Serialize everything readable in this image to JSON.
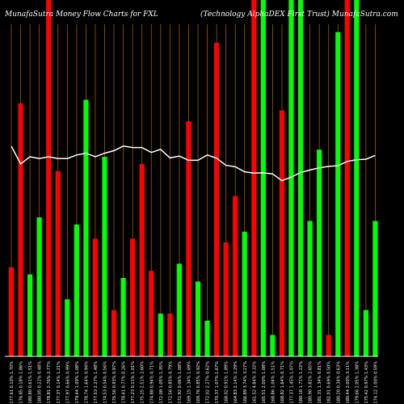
{
  "chart_data": {
    "type": "bar",
    "title": "MunafaSutra Money Flow Charts for FXL",
    "subtitle": "(Technology AlphaDEX First Trust) MunafaSutra.com",
    "ylim": [
      0,
      100
    ],
    "colors": {
      "up": "#00ff00",
      "down": "#ff0000",
      "line": "#ffffff",
      "grid": "#a05a00",
      "background": "#000000"
    },
    "bars": [
      {
        "label": "177.61 0.10% 1.70%",
        "value": 25,
        "color": "down"
      },
      {
        "label": "176.85 0.18% 1.86%",
        "value": 71,
        "color": "down"
      },
      {
        "label": "180.80 0.61% 1.51%",
        "value": 23,
        "color": "up"
      },
      {
        "label": "180.05 0.22% 0.48%",
        "value": 39,
        "color": "up"
      },
      {
        "label": "178.81 2.76% 2.77%",
        "value": 100,
        "color": "down"
      },
      {
        "label": "177.37 0.14% 1.21%",
        "value": 52,
        "color": "down"
      },
      {
        "label": "177.97 0.66% 0.99%",
        "value": 16,
        "color": "up"
      },
      {
        "label": "179.44 1.09% 1.08%",
        "value": 37,
        "color": "up"
      },
      {
        "label": "178.74 1.64% 0.94%",
        "value": 72,
        "color": "up"
      },
      {
        "label": "177.53 2.27% 1.48%",
        "value": 33,
        "color": "down"
      },
      {
        "label": "174.53 0.54% 0.56%",
        "value": 56,
        "color": "up"
      },
      {
        "label": "176.56 0.93% 0.97%",
        "value": 13,
        "color": "down"
      },
      {
        "label": "178.41 0.77% 0.26%",
        "value": 22,
        "color": "up"
      },
      {
        "label": "177.23 0.11% 1.01%",
        "value": 33,
        "color": "down"
      },
      {
        "label": "175.25 2.51% 2.60%",
        "value": 54,
        "color": "down"
      },
      {
        "label": "174.88 0.94% 0.71%",
        "value": 24,
        "color": "down"
      },
      {
        "label": "172.08 1.05% 1.35%",
        "value": 12,
        "color": "up"
      },
      {
        "label": "172.56 0.85% 0.79%",
        "value": 12,
        "color": "down"
      },
      {
        "label": "172.92 0.06% 1.08%",
        "value": 26,
        "color": "up"
      },
      {
        "label": "169.15 1.34% 1.69%",
        "value": 66,
        "color": "down"
      },
      {
        "label": "169.76 0.85% 0.92%",
        "value": 21,
        "color": "up"
      },
      {
        "label": "172.02 2.27% 0.62%",
        "value": 10,
        "color": "up"
      },
      {
        "label": "170.37 1.07% 1.67%",
        "value": 88,
        "color": "down"
      },
      {
        "label": "168.02 0.91% 1.89%",
        "value": 32,
        "color": "down"
      },
      {
        "label": "164.83 2.14% 2.29%",
        "value": 45,
        "color": "down"
      },
      {
        "label": "166.89 3.74% 3.27%",
        "value": 35,
        "color": "up"
      },
      {
        "label": "161.52 4.84% 3.32%",
        "value": 100,
        "color": "down"
      },
      {
        "label": "165.51 2.00% 1.08%",
        "value": 100,
        "color": "up"
      },
      {
        "label": "168.86 1.04% 1.51%",
        "value": 6,
        "color": "up"
      },
      {
        "label": "168.82 1.64% 0.71%",
        "value": 69,
        "color": "down"
      },
      {
        "label": "177.37 1.45% 1.07%",
        "value": 100,
        "color": "up"
      },
      {
        "label": "180.18 1.71% 1.22%",
        "value": 100,
        "color": "up"
      },
      {
        "label": "180.90 3.82% 2.65%",
        "value": 38,
        "color": "up"
      },
      {
        "label": "181.31 1.34% 0.81%",
        "value": 58,
        "color": "up"
      },
      {
        "label": "182.01 0.69% 0.50%",
        "value": 6,
        "color": "down"
      },
      {
        "label": "180.20 0.34% 0.63%",
        "value": 91,
        "color": "up"
      },
      {
        "label": "180.44 2.00% 3.11%",
        "value": 100,
        "color": "down"
      },
      {
        "label": "179.66 2.05% 1.38%",
        "value": 100,
        "color": "up"
      },
      {
        "label": "175.42 0.97% 1.43%",
        "value": 13,
        "color": "up"
      },
      {
        "label": "174.12 1.00% 0.59%",
        "value": 38,
        "color": "up"
      }
    ],
    "line": [
      59,
      54,
      56,
      55.5,
      56,
      55.5,
      55.5,
      56.5,
      57,
      56,
      57,
      57.7,
      59,
      58.6,
      58.6,
      57.2,
      58.1,
      55.7,
      56.2,
      55,
      55,
      56.5,
      55.6,
      53.6,
      53.2,
      51.8,
      51.4,
      51.5,
      51.2,
      49.3,
      50.3,
      51.6,
      52.3,
      52.9,
      53.3,
      53.5,
      54.7,
      55.2,
      55.3,
      56.4
    ]
  }
}
